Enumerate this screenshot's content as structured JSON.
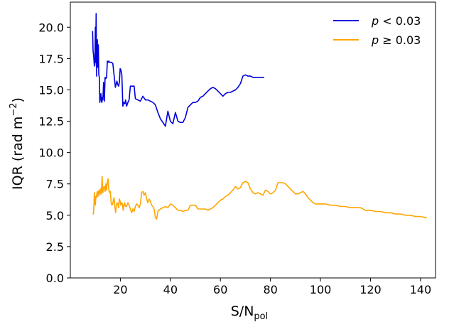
{
  "chart_data": {
    "type": "line",
    "xlabel": "S/N",
    "xlabel_sub": "pol",
    "ylabel": "IQR (rad m",
    "ylabel_sup": "−2",
    "ylabel_close": ")",
    "xlim": [
      0,
      146
    ],
    "ylim": [
      0,
      22
    ],
    "xticks": [
      20,
      40,
      60,
      80,
      100,
      120,
      140
    ],
    "yticks": [
      0.0,
      2.5,
      5.0,
      7.5,
      10.0,
      12.5,
      15.0,
      17.5,
      20.0
    ],
    "ytick_labels": [
      "0.0",
      "2.5",
      "5.0",
      "7.5",
      "10.0",
      "12.5",
      "15.0",
      "17.5",
      "20.0"
    ],
    "grid": false,
    "legend_position": "top-right",
    "series": [
      {
        "name_var": "p",
        "name_rest": " < 0.03",
        "color": "#0000dd",
        "x": [
          8.9,
          9.1,
          9.3,
          9.6,
          9.8,
          10.0,
          10.1,
          10.3,
          10.5,
          10.6,
          10.8,
          11.0,
          11.2,
          11.4,
          11.6,
          11.8,
          12.0,
          12.2,
          12.4,
          12.6,
          12.8,
          13.0,
          13.3,
          13.6,
          13.9,
          14.2,
          14.5,
          14.8,
          15.1,
          15.4,
          15.7,
          16.0,
          16.5,
          17.0,
          18.0,
          18.6,
          19.0,
          19.3,
          19.6,
          19.9,
          20.2,
          20.6,
          21.0,
          21.4,
          21.8,
          22.1,
          22.5,
          23.0,
          23.5,
          24.0,
          24.5,
          25.0,
          25.5,
          26.0,
          27.0,
          28.0,
          29.0,
          30.0,
          31.0,
          32.0,
          33.0,
          34.0,
          35.0,
          36.0,
          37.0,
          38.0,
          39.0,
          40.0,
          41.0,
          42.0,
          43.0,
          44.0,
          45.0,
          46.0,
          47.0,
          48.0,
          49.0,
          50.0,
          51.0,
          52.0,
          53.0,
          54.0,
          55.0,
          56.0,
          57.0,
          58.0,
          59.0,
          60.0,
          61.0,
          62.0,
          63.0,
          64.0,
          65.0,
          66.0,
          67.0,
          68.0,
          69.0,
          70.0,
          71.0,
          72.0,
          73.0,
          75.0,
          77.5
        ],
        "y": [
          19.7,
          18.1,
          17.8,
          16.9,
          17.0,
          20.0,
          17.2,
          21.1,
          16.1,
          18.8,
          19.0,
          16.8,
          18.6,
          16.2,
          16.0,
          14.0,
          14.4,
          14.7,
          14.1,
          14.0,
          14.4,
          14.2,
          15.6,
          14.1,
          16.0,
          15.9,
          16.0,
          17.3,
          17.2,
          17.3,
          17.2,
          17.2,
          17.2,
          17.1,
          15.2,
          15.7,
          15.4,
          15.3,
          15.6,
          16.7,
          16.6,
          16.2,
          13.7,
          14.0,
          13.9,
          14.2,
          13.7,
          14.0,
          14.2,
          15.3,
          15.3,
          15.3,
          15.3,
          14.3,
          14.2,
          14.1,
          14.5,
          14.2,
          14.2,
          14.1,
          14.0,
          13.8,
          13.2,
          12.7,
          12.4,
          12.1,
          13.3,
          12.5,
          12.3,
          13.2,
          12.5,
          12.4,
          12.4,
          12.8,
          13.6,
          13.8,
          14.0,
          14.0,
          14.1,
          14.4,
          14.5,
          14.7,
          14.9,
          15.1,
          15.2,
          15.1,
          14.9,
          14.7,
          14.5,
          14.7,
          14.8,
          14.8,
          14.9,
          15.0,
          15.2,
          15.5,
          16.1,
          16.2,
          16.1,
          16.1,
          16.0,
          16.0,
          16.0
        ]
      },
      {
        "name_var": "p",
        "name_rest": " ≥ 0.03",
        "color": "#ffa500",
        "x": [
          9.0,
          9.2,
          9.4,
          9.6,
          9.8,
          10.0,
          10.2,
          10.4,
          10.6,
          10.8,
          11.0,
          11.2,
          11.5,
          11.8,
          12.1,
          12.4,
          12.7,
          13.0,
          13.3,
          13.6,
          13.9,
          14.2,
          14.5,
          14.8,
          15.1,
          15.4,
          15.7,
          16.0,
          16.3,
          16.6,
          16.9,
          17.2,
          17.5,
          17.8,
          18.1,
          18.4,
          18.7,
          19.0,
          19.3,
          19.6,
          19.9,
          20.2,
          20.5,
          20.8,
          21.1,
          21.4,
          21.7,
          22.0,
          22.5,
          23.0,
          23.5,
          24.0,
          24.5,
          25.0,
          25.5,
          26.0,
          26.5,
          27.0,
          27.5,
          28.0,
          28.5,
          29.0,
          29.5,
          30.0,
          30.5,
          31.0,
          31.5,
          32.0,
          32.5,
          33.0,
          33.5,
          34.0,
          34.5,
          35.0,
          36.0,
          37.0,
          38.0,
          39.0,
          40.0,
          41.0,
          42.0,
          43.0,
          44.0,
          45.0,
          46.0,
          47.0,
          48.0,
          49.0,
          50.0,
          51.0,
          52.0,
          53.0,
          54.0,
          55.0,
          56.0,
          57.0,
          58.0,
          59.0,
          60.0,
          61.0,
          62.0,
          63.0,
          64.0,
          65.0,
          66.0,
          67.0,
          68.0,
          69.0,
          70.0,
          71.0,
          72.0,
          73.0,
          74.0,
          75.0,
          76.0,
          77.0,
          78.0,
          79.0,
          80.0,
          81.0,
          82.0,
          83.0,
          84.0,
          85.0,
          86.0,
          87.0,
          88.0,
          89.0,
          90.0,
          91.0,
          92.0,
          93.0,
          94.0,
          95.0,
          96.0,
          97.0,
          98.0,
          100.0,
          102.0,
          104.0,
          106.0,
          108.0,
          110.0,
          112.0,
          114.0,
          116.0,
          118.0,
          120.0,
          122.0,
          124.0,
          126.0,
          128.0,
          130.0,
          132.0,
          134.0,
          136.0,
          138.0,
          140.0,
          142.5
        ],
        "y": [
          5.2,
          5.1,
          5.6,
          6.8,
          6.1,
          5.8,
          6.5,
          6.4,
          6.7,
          6.9,
          6.5,
          6.8,
          7.0,
          6.6,
          7.1,
          6.7,
          8.1,
          6.8,
          7.2,
          7.3,
          6.9,
          7.5,
          7.0,
          7.7,
          7.9,
          7.0,
          6.8,
          6.9,
          6.0,
          5.8,
          5.9,
          6.2,
          6.4,
          5.7,
          5.2,
          5.8,
          6.0,
          5.9,
          5.6,
          6.3,
          6.1,
          5.8,
          6.0,
          5.9,
          5.4,
          5.8,
          6.0,
          5.7,
          5.7,
          6.0,
          5.8,
          5.5,
          5.2,
          5.5,
          5.3,
          5.7,
          5.9,
          5.8,
          5.6,
          5.9,
          6.8,
          6.9,
          6.6,
          6.8,
          6.3,
          6.0,
          6.3,
          6.1,
          5.8,
          5.7,
          5.5,
          4.8,
          4.7,
          5.3,
          5.5,
          5.6,
          5.7,
          5.6,
          5.9,
          5.8,
          5.6,
          5.4,
          5.4,
          5.3,
          5.4,
          5.4,
          5.8,
          5.8,
          5.8,
          5.5,
          5.5,
          5.5,
          5.5,
          5.4,
          5.5,
          5.6,
          5.8,
          6.0,
          6.2,
          6.3,
          6.5,
          6.6,
          6.8,
          7.0,
          7.3,
          7.1,
          7.2,
          7.6,
          7.7,
          7.6,
          7.1,
          6.8,
          6.7,
          6.8,
          6.7,
          6.6,
          7.0,
          6.9,
          6.7,
          6.8,
          7.0,
          7.6,
          7.6,
          7.6,
          7.5,
          7.3,
          7.1,
          6.9,
          6.7,
          6.7,
          6.8,
          6.9,
          6.7,
          6.4,
          6.2,
          6.0,
          5.9,
          5.9,
          5.9,
          5.8,
          5.8,
          5.7,
          5.7,
          5.6,
          5.6,
          5.6,
          5.4,
          5.4,
          5.3,
          5.3,
          5.2,
          5.2,
          5.1,
          5.1,
          5.0,
          5.0,
          4.9,
          4.9,
          4.8
        ]
      }
    ]
  }
}
